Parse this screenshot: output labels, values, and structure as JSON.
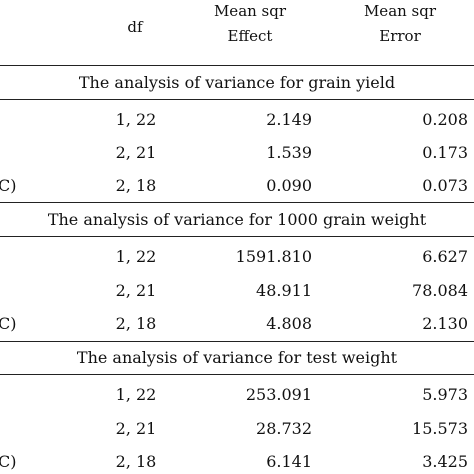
{
  "header": {
    "df": "df",
    "effect_line1": "Mean sqr",
    "effect_line2": "Effect",
    "error_line1": "Mean sqr",
    "error_line2": "Error"
  },
  "sections": [
    {
      "title": "The analysis of variance for grain yield",
      "rows": [
        {
          "label": "",
          "df": "1, 22",
          "effect": "2.149",
          "error": "0.208"
        },
        {
          "label": "",
          "df": "2, 21",
          "effect": "1.539",
          "error": "0.173"
        },
        {
          "label": "C)",
          "df": "2, 18",
          "effect": "0.090",
          "error": "0.073"
        }
      ]
    },
    {
      "title": "The analysis of variance for 1000 grain weight",
      "rows": [
        {
          "label": "",
          "df": "1, 22",
          "effect": "1591.810",
          "error": "6.627"
        },
        {
          "label": "",
          "df": "2, 21",
          "effect": "48.911",
          "error": "78.084"
        },
        {
          "label": "C)",
          "df": "2, 18",
          "effect": "4.808",
          "error": "2.130"
        }
      ]
    },
    {
      "title": "The analysis of variance for test weight",
      "rows": [
        {
          "label": "",
          "df": "1, 22",
          "effect": "253.091",
          "error": "5.973"
        },
        {
          "label": "",
          "df": "2, 21",
          "effect": "28.732",
          "error": "15.573"
        },
        {
          "label": "C)",
          "df": "2, 18",
          "effect": "6.141",
          "error": "3.425"
        }
      ]
    }
  ]
}
